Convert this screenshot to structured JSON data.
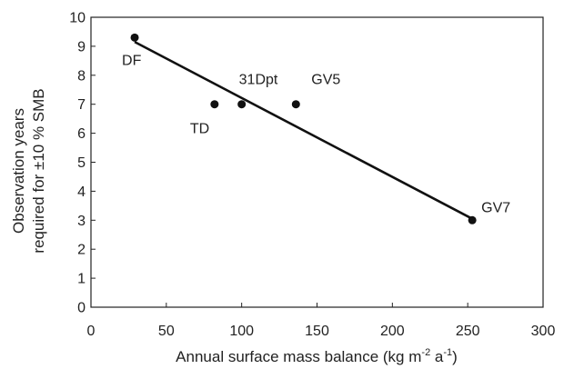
{
  "chart_data": {
    "type": "scatter",
    "xlabel": "Annual surface mass balance (kg m",
    "xlabel_sup1": "-2",
    "xlabel_mid": " a",
    "xlabel_sup2": "-1",
    "xlabel_end": ")",
    "ylabel_line1": "Observation years",
    "ylabel_line2": "required for ±10 % SMB",
    "xlim": [
      0,
      300
    ],
    "ylim": [
      0,
      10
    ],
    "xticks": [
      0,
      50,
      100,
      150,
      200,
      250,
      300
    ],
    "yticks": [
      0,
      1,
      2,
      3,
      4,
      5,
      6,
      7,
      8,
      9,
      10
    ],
    "points": [
      {
        "label": "DF",
        "x": 29,
        "y": 9.3
      },
      {
        "label": "TD",
        "x": 82,
        "y": 7.0
      },
      {
        "label": "31Dpt",
        "x": 100,
        "y": 7.0
      },
      {
        "label": "GV5",
        "x": 136,
        "y": 7.0
      },
      {
        "label": "GV7",
        "x": 253,
        "y": 3.0
      }
    ],
    "trendline": {
      "x": [
        29,
        253
      ],
      "y": [
        9.15,
        3.05
      ]
    },
    "grid": false,
    "colors": {
      "marker": "#111111",
      "line": "#111111",
      "axis": "#222222"
    }
  }
}
